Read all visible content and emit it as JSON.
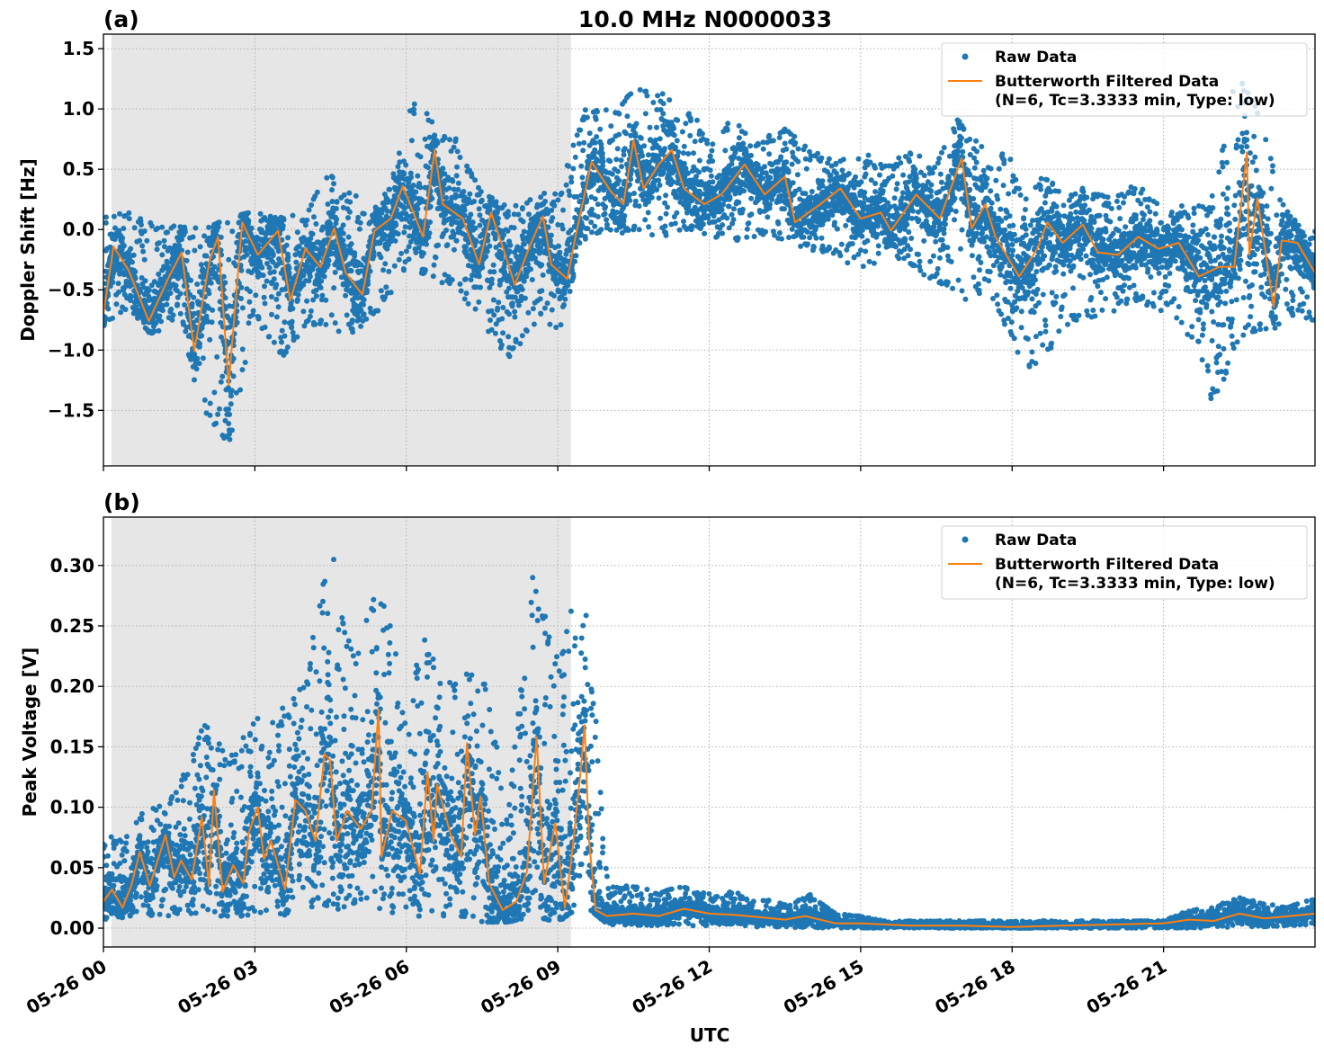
{
  "figure_title": "10.0 MHz N0000033",
  "xlabel": "UTC",
  "x_tick_labels": [
    "05-26 00",
    "05-26 03",
    "05-26 06",
    "05-26 09",
    "05-26 12",
    "05-26 15",
    "05-26 18",
    "05-26 21"
  ],
  "colors": {
    "raw": "#1f77b4",
    "filtered": "#ff7f0e",
    "night_shade": "#e6e6e6",
    "grid": "#b0b0b0"
  },
  "legend": {
    "raw_label": "Raw Data",
    "filtered_label_line1": "Butterworth Filtered Data",
    "filtered_label_line2": "(N=6, Tc=3.3333 min, Type: low)",
    "placement": "top-right"
  },
  "chart_data": [
    {
      "type": "scatter+line",
      "panel_label": "(a)",
      "ylabel": "Doppler Shift [Hz]",
      "xlim_hours_utc": [
        0,
        24
      ],
      "ylim": [
        -1.96,
        1.62
      ],
      "yticks": [
        -1.5,
        -1.0,
        -0.5,
        0.0,
        0.5,
        1.0,
        1.5
      ],
      "ytick_labels": [
        "−1.5",
        "−1.0",
        "−0.5",
        "0.0",
        "0.5",
        "1.0",
        "1.5"
      ],
      "grid": true,
      "shaded_interval_hours_utc": [
        0.16,
        9.26
      ],
      "filtered": {
        "x_hours_utc": [
          0,
          0.2,
          0.5,
          0.9,
          1.3,
          1.55,
          1.8,
          2.1,
          2.27,
          2.48,
          2.75,
          3.06,
          3.46,
          3.7,
          4.0,
          4.3,
          4.57,
          4.8,
          5.13,
          5.37,
          5.69,
          5.93,
          6.33,
          6.56,
          6.72,
          7.12,
          7.44,
          7.68,
          7.92,
          8.15,
          8.47,
          8.71,
          8.87,
          9.19,
          9.35,
          9.67,
          10.06,
          10.3,
          10.5,
          10.7,
          11.0,
          11.26,
          11.5,
          11.9,
          12.24,
          12.7,
          13.1,
          13.5,
          13.7,
          14.2,
          14.6,
          15.0,
          15.4,
          15.6,
          16.1,
          16.57,
          17.0,
          17.2,
          17.47,
          17.67,
          18.14,
          18.5,
          18.7,
          19.0,
          19.4,
          19.7,
          20.1,
          20.5,
          20.9,
          21.3,
          21.7,
          22.1,
          22.4,
          22.65,
          22.7,
          22.86,
          23.18,
          23.34,
          23.65,
          24
        ],
        "y": [
          -0.7,
          -0.14,
          -0.34,
          -0.76,
          -0.39,
          -0.19,
          -1.01,
          -0.26,
          -0.06,
          -1.29,
          0.06,
          -0.21,
          -0.01,
          -0.59,
          -0.16,
          -0.31,
          0.01,
          -0.36,
          -0.54,
          -0.01,
          0.09,
          0.36,
          -0.06,
          0.66,
          0.21,
          0.09,
          -0.29,
          0.14,
          -0.16,
          -0.46,
          -0.11,
          0.11,
          -0.29,
          -0.41,
          -0.06,
          0.56,
          0.31,
          0.21,
          0.74,
          0.34,
          0.54,
          0.66,
          0.34,
          0.21,
          0.29,
          0.54,
          0.29,
          0.44,
          0.06,
          0.21,
          0.34,
          0.09,
          0.14,
          -0.01,
          0.29,
          0.09,
          0.59,
          0.01,
          0.21,
          -0.06,
          -0.39,
          -0.16,
          0.06,
          -0.11,
          0.04,
          -0.19,
          -0.21,
          -0.06,
          -0.16,
          -0.11,
          -0.39,
          -0.31,
          -0.31,
          0.64,
          -0.21,
          0.26,
          -0.64,
          -0.09,
          -0.11,
          -0.36
        ]
      },
      "raw_envelope": {
        "x_hours_utc": [
          0,
          0.5,
          1,
          1.5,
          2,
          2.5,
          3,
          3.5,
          4,
          4.5,
          5,
          5.5,
          6,
          6.5,
          7,
          7.5,
          8,
          8.5,
          9,
          9.5,
          10,
          10.5,
          11,
          11.5,
          12,
          12.5,
          13,
          13.5,
          14,
          14.5,
          15,
          15.5,
          16,
          16.5,
          17,
          17.5,
          18,
          18.5,
          19,
          19.5,
          20,
          20.5,
          21,
          21.5,
          22,
          22.5,
          23,
          23.5,
          24
        ],
        "low": [
          -0.8,
          -0.65,
          -0.9,
          -0.7,
          -1.6,
          -1.8,
          -0.7,
          -1.1,
          -0.8,
          -0.85,
          -0.85,
          -0.7,
          -0.3,
          -0.4,
          -0.5,
          -0.8,
          -1.1,
          -0.8,
          -0.9,
          -0.1,
          0.0,
          -0.05,
          -0.05,
          -0.05,
          -0.05,
          -0.1,
          -0.05,
          -0.1,
          -0.2,
          -0.2,
          -0.4,
          -0.2,
          -0.3,
          -0.45,
          -0.6,
          -0.5,
          -1.0,
          -1.2,
          -0.8,
          -0.75,
          -0.7,
          -0.6,
          -0.7,
          -0.9,
          -1.5,
          -0.9,
          -0.9,
          -0.7,
          -0.8
        ],
        "high": [
          0.1,
          0.15,
          0.05,
          0.05,
          0.0,
          0.1,
          0.15,
          0.1,
          0.15,
          0.5,
          0.35,
          0.15,
          1.1,
          0.95,
          0.75,
          0.3,
          0.2,
          0.3,
          0.3,
          1.0,
          1.0,
          1.15,
          1.25,
          1.0,
          0.85,
          0.9,
          0.75,
          0.85,
          0.65,
          0.6,
          0.65,
          0.55,
          0.65,
          0.55,
          1.0,
          0.7,
          0.6,
          0.45,
          0.35,
          0.35,
          0.25,
          0.4,
          0.2,
          0.2,
          0.3,
          1.45,
          0.8,
          0.15,
          0.0
        ]
      }
    },
    {
      "type": "scatter+line",
      "panel_label": "(b)",
      "ylabel": "Peak Voltage [V]",
      "xlim_hours_utc": [
        0,
        24
      ],
      "ylim": [
        -0.0156,
        0.34
      ],
      "yticks": [
        0.0,
        0.05,
        0.1,
        0.15,
        0.2,
        0.25,
        0.3
      ],
      "ytick_labels": [
        "0.00",
        "0.05",
        "0.10",
        "0.15",
        "0.20",
        "0.25",
        "0.30"
      ],
      "grid": true,
      "shaded_interval_hours_utc": [
        0.16,
        9.26
      ],
      "filtered": {
        "x_hours_utc": [
          0,
          0.17,
          0.38,
          0.55,
          0.72,
          0.92,
          1.06,
          1.23,
          1.4,
          1.54,
          1.75,
          1.95,
          2.09,
          2.19,
          2.36,
          2.57,
          2.77,
          2.88,
          3.06,
          3.18,
          3.32,
          3.6,
          3.8,
          4.0,
          4.2,
          4.38,
          4.49,
          4.62,
          4.83,
          5.1,
          5.31,
          5.45,
          5.51,
          5.72,
          5.99,
          6.27,
          6.42,
          6.54,
          6.61,
          6.88,
          7.09,
          7.2,
          7.36,
          7.47,
          7.64,
          7.91,
          8.18,
          8.39,
          8.58,
          8.73,
          8.95,
          9.14,
          9.27,
          9.45,
          9.53,
          9.62,
          9.75,
          9.97,
          10.5,
          11.0,
          11.5,
          12.0,
          12.5,
          13.0,
          13.5,
          13.9,
          14.5,
          15.0,
          16.0,
          17.0,
          18.0,
          19.0,
          20.0,
          21.0,
          21.5,
          22.0,
          22.5,
          23.0,
          23.5,
          24.0
        ],
        "y": [
          0.022,
          0.032,
          0.017,
          0.035,
          0.063,
          0.035,
          0.054,
          0.077,
          0.042,
          0.056,
          0.04,
          0.092,
          0.035,
          0.114,
          0.03,
          0.052,
          0.037,
          0.079,
          0.1,
          0.057,
          0.072,
          0.032,
          0.106,
          0.097,
          0.072,
          0.144,
          0.139,
          0.072,
          0.097,
          0.082,
          0.097,
          0.181,
          0.059,
          0.097,
          0.089,
          0.045,
          0.129,
          0.072,
          0.119,
          0.077,
          0.059,
          0.153,
          0.077,
          0.109,
          0.037,
          0.015,
          0.022,
          0.047,
          0.158,
          0.037,
          0.087,
          0.017,
          0.057,
          0.129,
          0.168,
          0.072,
          0.015,
          0.01,
          0.012,
          0.01,
          0.016,
          0.012,
          0.011,
          0.009,
          0.007,
          0.01,
          0.004,
          0.004,
          0.002,
          0.002,
          0.001,
          0.002,
          0.003,
          0.004,
          0.007,
          0.006,
          0.012,
          0.008,
          0.01,
          0.012
        ]
      },
      "raw_envelope": {
        "x_hours_utc": [
          0,
          0.5,
          1,
          1.5,
          2,
          2.5,
          3,
          3.5,
          4,
          4.5,
          5,
          5.5,
          6,
          6.5,
          7,
          7.5,
          8,
          8.5,
          9,
          9.5,
          10,
          10.5,
          11,
          11.5,
          12,
          12.5,
          13,
          13.5,
          14,
          14.5,
          15,
          15.5,
          16,
          16.5,
          17,
          17.5,
          18,
          18.5,
          19,
          19.5,
          20,
          20.5,
          21,
          21.5,
          22,
          22.5,
          23,
          23.5,
          24
        ],
        "low": [
          0.005,
          0.01,
          0.01,
          0.01,
          0.01,
          0.01,
          0.01,
          0.01,
          0.015,
          0.015,
          0.015,
          0.015,
          0.01,
          0.01,
          0.01,
          0.005,
          0.005,
          0.01,
          0.005,
          0.02,
          0.003,
          0.002,
          0.002,
          0.002,
          0.002,
          0.002,
          0.001,
          0.001,
          0.0,
          0.0,
          0.0,
          0.0,
          0.0,
          0.0,
          0.0,
          0.0,
          0.0,
          0.0,
          0.0,
          0.0,
          0.0,
          0.0,
          0.0,
          0.0,
          0.0,
          0.001,
          0.001,
          0.002,
          0.002
        ],
        "high": [
          0.07,
          0.09,
          0.1,
          0.12,
          0.17,
          0.14,
          0.18,
          0.18,
          0.21,
          0.32,
          0.22,
          0.31,
          0.19,
          0.26,
          0.2,
          0.23,
          0.09,
          0.29,
          0.23,
          0.31,
          0.035,
          0.035,
          0.03,
          0.035,
          0.03,
          0.03,
          0.025,
          0.02,
          0.028,
          0.012,
          0.01,
          0.006,
          0.006,
          0.006,
          0.006,
          0.006,
          0.006,
          0.006,
          0.006,
          0.006,
          0.006,
          0.006,
          0.006,
          0.015,
          0.018,
          0.026,
          0.02,
          0.018,
          0.025
        ]
      }
    }
  ]
}
